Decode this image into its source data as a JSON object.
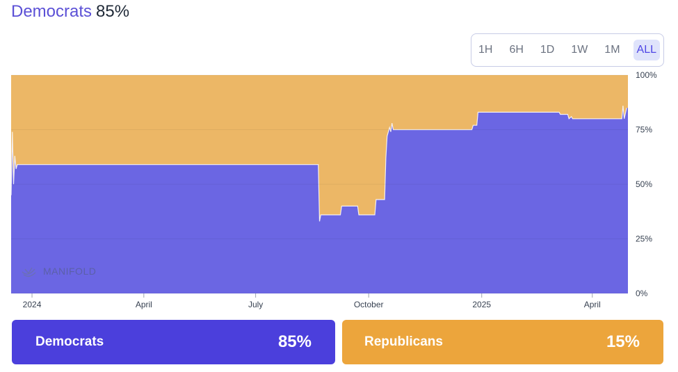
{
  "header": {
    "lead": "Democrats",
    "value": "85%"
  },
  "range_buttons": [
    {
      "label": "1H",
      "active": false
    },
    {
      "label": "6H",
      "active": false
    },
    {
      "label": "1D",
      "active": false
    },
    {
      "label": "1W",
      "active": false
    },
    {
      "label": "1M",
      "active": false
    },
    {
      "label": "ALL",
      "active": true
    }
  ],
  "watermark": "MANIFOLD",
  "colors": {
    "democrats": "#6b66e3",
    "republicans": "#ecb766",
    "dem_button": "#4b3fdc",
    "rep_button": "#eca53c"
  },
  "chart_data": {
    "type": "area",
    "title": "",
    "xlabel": "",
    "ylabel": "",
    "x_range": [
      "2023-12-15",
      "2025-04-30"
    ],
    "ylim": [
      0,
      100
    ],
    "y_ticks": [
      {
        "value": 100,
        "label": "100%"
      },
      {
        "value": 75,
        "label": "75%"
      },
      {
        "value": 50,
        "label": "50%"
      },
      {
        "value": 25,
        "label": "25%"
      },
      {
        "value": 0,
        "label": "0%"
      }
    ],
    "x_ticks": [
      {
        "date": "2024-01-01",
        "label": "2024"
      },
      {
        "date": "2024-04-01",
        "label": "April"
      },
      {
        "date": "2024-07-01",
        "label": "July"
      },
      {
        "date": "2024-10-01",
        "label": "October"
      },
      {
        "date": "2025-01-01",
        "label": "2025"
      },
      {
        "date": "2025-04-01",
        "label": "April"
      }
    ],
    "grid": true,
    "stacked": true,
    "series": [
      {
        "name": "Democrats",
        "points": [
          [
            "2023-12-15",
            45
          ],
          [
            "2023-12-16",
            74
          ],
          [
            "2023-12-17",
            50
          ],
          [
            "2023-12-18",
            63
          ],
          [
            "2023-12-19",
            57
          ],
          [
            "2023-12-20",
            59
          ],
          [
            "2024-08-21",
            59
          ],
          [
            "2024-08-22",
            33
          ],
          [
            "2024-08-23",
            36
          ],
          [
            "2024-09-08",
            36
          ],
          [
            "2024-09-09",
            40
          ],
          [
            "2024-09-22",
            40
          ],
          [
            "2024-09-23",
            36
          ],
          [
            "2024-10-06",
            36
          ],
          [
            "2024-10-07",
            43
          ],
          [
            "2024-10-14",
            43
          ],
          [
            "2024-10-15",
            62
          ],
          [
            "2024-10-16",
            72
          ],
          [
            "2024-10-18",
            76
          ],
          [
            "2024-10-19",
            74
          ],
          [
            "2024-10-20",
            78
          ],
          [
            "2024-10-21",
            75
          ],
          [
            "2024-12-24",
            75
          ],
          [
            "2024-12-25",
            77
          ],
          [
            "2024-12-28",
            77
          ],
          [
            "2024-12-29",
            83
          ],
          [
            "2025-03-05",
            83
          ],
          [
            "2025-03-06",
            82
          ],
          [
            "2025-03-12",
            82
          ],
          [
            "2025-03-13",
            80
          ],
          [
            "2025-03-15",
            81
          ],
          [
            "2025-03-16",
            80
          ],
          [
            "2025-04-25",
            80
          ],
          [
            "2025-04-26",
            86
          ],
          [
            "2025-04-27",
            80
          ],
          [
            "2025-04-29",
            85
          ]
        ]
      },
      {
        "name": "Republicans",
        "current": 15
      }
    ]
  },
  "options": [
    {
      "name": "Democrats",
      "value": "85%"
    },
    {
      "name": "Republicans",
      "value": "15%"
    }
  ]
}
